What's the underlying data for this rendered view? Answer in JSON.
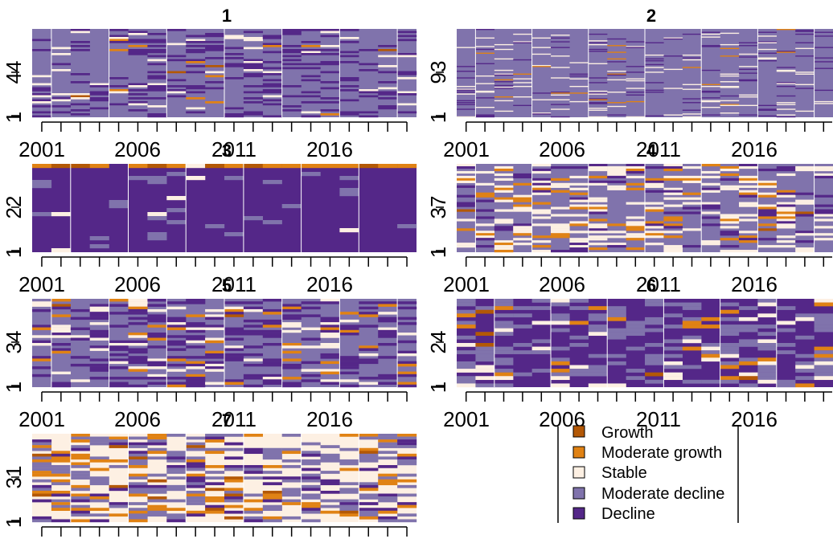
{
  "palette": {
    "Growth": "#b35806",
    "Moderate growth": "#e08214",
    "Stable": "#fdf0e3",
    "Moderate decline": "#8073ac",
    "Decline": "#542788",
    "separator": "#ffffff"
  },
  "legend": {
    "entries": [
      "Growth",
      "Moderate growth",
      "Stable",
      "Moderate decline",
      "Decline"
    ]
  },
  "chart_data": [
    {
      "type": "heatmap",
      "title": "1",
      "x_start": 2001,
      "x_end": 2020,
      "x_tick_labels": [
        "2001",
        "2006",
        "2011",
        "2016"
      ],
      "y_tick_labels": [
        "1",
        "44"
      ],
      "n_units": 44,
      "base_category": "Moderate decline",
      "seed": 11,
      "mix": {
        "Growth": 0.005,
        "Moderate growth": 0.02,
        "Stable": 0.05,
        "Moderate decline": 0.7,
        "Decline": 0.225
      },
      "top_row": null
    },
    {
      "type": "heatmap",
      "title": "2",
      "x_start": 2001,
      "x_end": 2020,
      "x_tick_labels": [
        "2001",
        "2006",
        "2011",
        "2016"
      ],
      "y_tick_labels": [
        "1",
        "93"
      ],
      "n_units": 93,
      "base_category": "Moderate decline",
      "seed": 23,
      "mix": {
        "Growth": 0.0,
        "Moderate growth": 0.01,
        "Stable": 0.05,
        "Moderate decline": 0.87,
        "Decline": 0.07
      },
      "top_row": null
    },
    {
      "type": "heatmap",
      "title": "3",
      "x_start": 2001,
      "x_end": 2020,
      "x_tick_labels": [
        "2001",
        "2006",
        "2011",
        "2016"
      ],
      "y_tick_labels": [
        "1",
        "22"
      ],
      "n_units": 22,
      "base_category": "Decline",
      "seed": 37,
      "mix": {
        "Growth": 0.0,
        "Moderate growth": 0.0,
        "Stable": 0.02,
        "Moderate decline": 0.06,
        "Decline": 0.92
      },
      "top_row": [
        "Moderate growth",
        "Growth",
        "Growth",
        "Moderate growth",
        "Decline",
        "Moderate growth",
        "Growth",
        "Moderate growth",
        "Stable",
        "Growth",
        "Moderate growth",
        "Growth",
        "Moderate growth",
        "Moderate growth",
        "Moderate growth",
        "Moderate growth",
        "Moderate growth",
        "Growth",
        "Moderate growth",
        "Moderate growth"
      ]
    },
    {
      "type": "heatmap",
      "title": "4",
      "x_start": 2001,
      "x_end": 2020,
      "x_tick_labels": [
        "2001",
        "2006",
        "2011",
        "2016"
      ],
      "y_tick_labels": [
        "1",
        "37"
      ],
      "n_units": 37,
      "base_category": "Moderate decline",
      "seed": 41,
      "mix": {
        "Growth": 0.01,
        "Moderate growth": 0.1,
        "Stable": 0.22,
        "Moderate decline": 0.57,
        "Decline": 0.1
      },
      "top_row": null
    },
    {
      "type": "heatmap",
      "title": "5",
      "x_start": 2001,
      "x_end": 2020,
      "x_tick_labels": [
        "2001",
        "2006",
        "2011",
        "2016"
      ],
      "y_tick_labels": [
        "1",
        "34"
      ],
      "n_units": 34,
      "base_category": "Moderate decline",
      "seed": 53,
      "mix": {
        "Growth": 0.01,
        "Moderate growth": 0.05,
        "Stable": 0.09,
        "Moderate decline": 0.55,
        "Decline": 0.3
      },
      "top_row": null
    },
    {
      "type": "heatmap",
      "title": "6",
      "x_start": 2001,
      "x_end": 2020,
      "x_tick_labels": [
        "2001",
        "2006",
        "2011",
        "2016"
      ],
      "y_tick_labels": [
        "1",
        "24"
      ],
      "n_units": 24,
      "base_category": "Decline",
      "seed": 67,
      "mix": {
        "Growth": 0.01,
        "Moderate growth": 0.04,
        "Stable": 0.06,
        "Moderate decline": 0.3,
        "Decline": 0.59
      },
      "top_row": null
    },
    {
      "type": "heatmap",
      "title": "7",
      "x_start": 2001,
      "x_end": 2020,
      "x_tick_labels": [],
      "y_tick_labels": [
        "1",
        "31"
      ],
      "n_units": 31,
      "base_category": "Stable",
      "seed": 79,
      "mix": {
        "Growth": 0.03,
        "Moderate growth": 0.13,
        "Stable": 0.42,
        "Moderate decline": 0.3,
        "Decline": 0.12
      },
      "top_row": null
    }
  ]
}
